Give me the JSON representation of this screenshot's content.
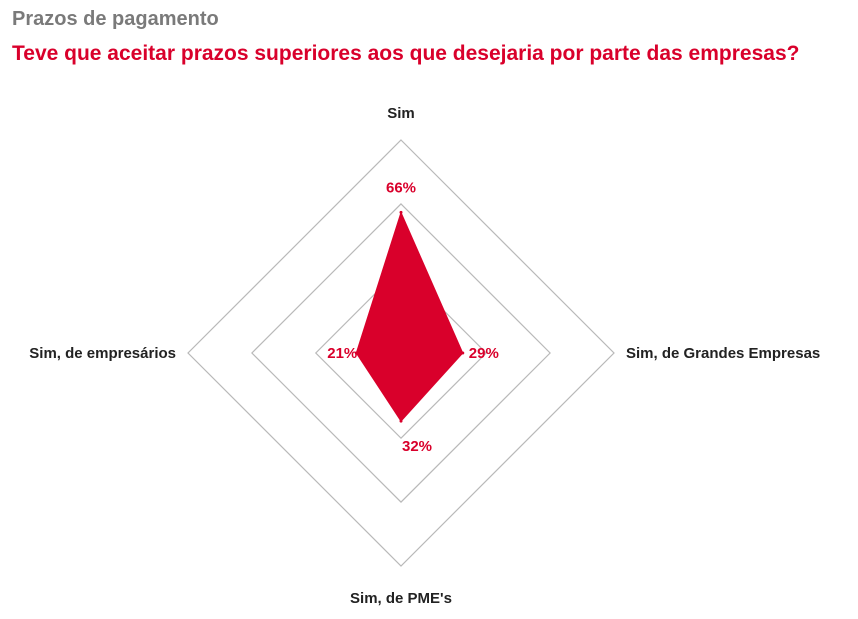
{
  "header": {
    "supertitle": "Prazos de pagamento",
    "title": "Teve que aceitar prazos superiores aos que desejaria por parte das empresas?"
  },
  "colors": {
    "accent": "#d9002b",
    "supertitle": "#7a7a7a",
    "grid": "#b9b9b9",
    "axis_text": "#222222"
  },
  "chart_data": {
    "type": "radar",
    "title": "Teve que aceitar prazos superiores aos que desejaria por parte das empresas?",
    "categories": [
      "Sim",
      "Sim, de Grandes Empresas",
      "Sim, de PME's",
      "Sim, de empresários"
    ],
    "values": [
      66,
      29,
      32,
      21
    ],
    "value_labels": [
      "66%",
      "29%",
      "32%",
      "21%"
    ],
    "unit": "%",
    "rlim": [
      0,
      100
    ],
    "grid_levels": [
      40,
      70,
      100
    ],
    "grid": true,
    "legend": "none"
  }
}
